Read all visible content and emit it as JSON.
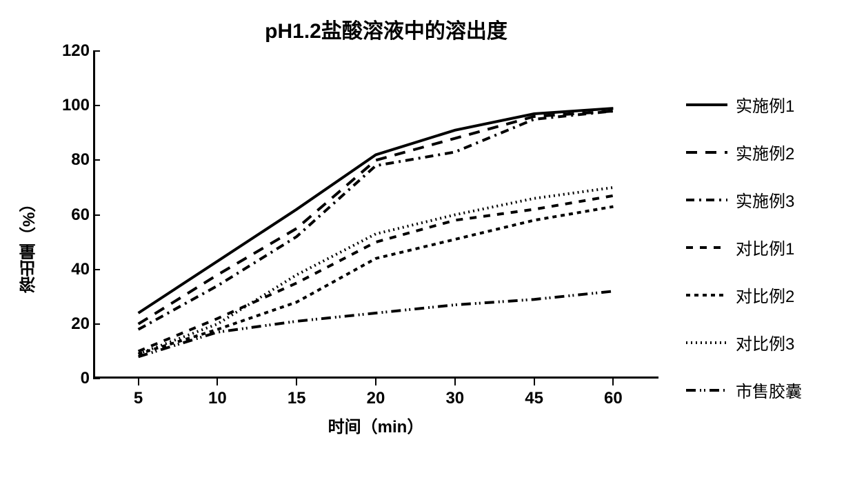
{
  "chart": {
    "type": "line",
    "title": "pH1.2盐酸溶液中的溶出度",
    "title_fontsize": 30,
    "xlabel": "时间（min）",
    "ylabel": "溶出量（%）",
    "label_fontsize": 24,
    "tick_fontsize": 24,
    "legend_fontsize": 24,
    "background_color": "#ffffff",
    "axis_color": "#000000",
    "line_color": "#000000",
    "line_width": 4,
    "x_categories": [
      "5",
      "10",
      "15",
      "20",
      "30",
      "45",
      "60"
    ],
    "ylim": [
      0,
      120
    ],
    "ytick_step": 20,
    "y_ticks": [
      0,
      20,
      40,
      60,
      80,
      100,
      120
    ],
    "series": [
      {
        "name": "实施例1",
        "dash": "none",
        "values": [
          24,
          43,
          62,
          82,
          91,
          97,
          99
        ]
      },
      {
        "name": "实施例2",
        "dash": "16,12",
        "values": [
          20,
          38,
          55,
          80,
          88,
          96,
          98
        ]
      },
      {
        "name": "实施例3",
        "dash": "12,7,3,7",
        "values": [
          18,
          34,
          52,
          78,
          83,
          95,
          98
        ]
      },
      {
        "name": "对比例1",
        "dash": "10,10",
        "values": [
          10,
          22,
          35,
          50,
          58,
          62,
          67
        ]
      },
      {
        "name": "对比例2",
        "dash": "6,6",
        "values": [
          9,
          18,
          28,
          44,
          51,
          58,
          63
        ]
      },
      {
        "name": "对比例3",
        "dash": "2,5",
        "values": [
          9,
          20,
          38,
          53,
          60,
          66,
          70
        ]
      },
      {
        "name": "市售胶囊",
        "dash": "14,6,2,4,2,6",
        "values": [
          8,
          17,
          21,
          24,
          27,
          29,
          32
        ]
      }
    ]
  }
}
